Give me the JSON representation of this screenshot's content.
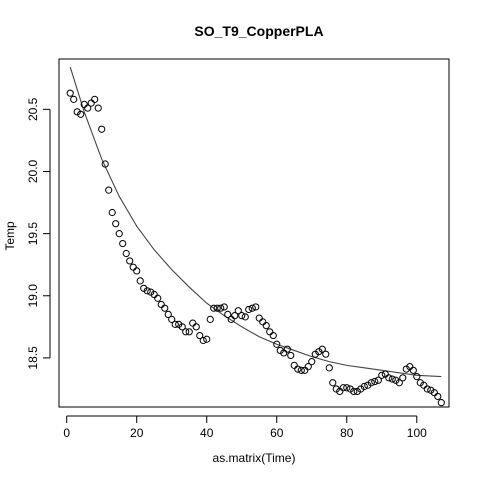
{
  "chart_data": {
    "type": "scatter",
    "title": "SO_T9_CopperPLA",
    "xlabel": "as.matrix(Time)",
    "ylabel": "Temp",
    "xlim": [
      -2.2,
      109.2
    ],
    "ylim": [
      18.105,
      20.905
    ],
    "x_ticks": [
      0,
      20,
      40,
      60,
      80,
      100
    ],
    "y_ticks": [
      18.5,
      19.0,
      19.5,
      20.0,
      20.5
    ],
    "x_tick_labels": [
      "0",
      "20",
      "40",
      "60",
      "80",
      "100"
    ],
    "y_tick_labels": [
      "18.5",
      "19.0",
      "19.5",
      "20.0",
      "20.5"
    ],
    "grid": false,
    "series": [
      {
        "type": "scatter",
        "marker": "open-circle",
        "x": [
          1,
          2,
          3,
          4,
          5,
          6,
          7,
          8,
          9,
          10,
          11,
          12,
          13,
          14,
          15,
          16,
          17,
          18,
          19,
          20,
          21,
          22,
          23,
          24,
          25,
          26,
          27,
          28,
          29,
          30,
          31,
          32,
          33,
          34,
          35,
          36,
          37,
          38,
          39,
          40,
          41,
          42,
          43,
          44,
          45,
          46,
          47,
          48,
          49,
          50,
          51,
          52,
          53,
          54,
          55,
          56,
          57,
          58,
          59,
          60,
          61,
          62,
          63,
          64,
          65,
          66,
          67,
          68,
          69,
          70,
          71,
          72,
          73,
          74,
          75,
          76,
          77,
          78,
          79,
          80,
          81,
          82,
          83,
          84,
          85,
          86,
          87,
          88,
          89,
          90,
          91,
          92,
          93,
          94,
          95,
          96,
          97,
          98,
          99,
          100,
          101,
          102,
          103,
          104,
          105,
          106,
          107
        ],
        "y": [
          20.63,
          20.58,
          20.48,
          20.46,
          20.54,
          20.51,
          20.55,
          20.58,
          20.51,
          20.34,
          20.06,
          19.85,
          19.67,
          19.58,
          19.5,
          19.42,
          19.34,
          19.28,
          19.23,
          19.2,
          19.12,
          19.06,
          19.04,
          19.03,
          19.01,
          18.98,
          18.93,
          18.9,
          18.85,
          18.81,
          18.77,
          18.77,
          18.75,
          18.71,
          18.71,
          18.78,
          18.75,
          18.68,
          18.64,
          18.65,
          18.81,
          18.9,
          18.9,
          18.9,
          18.91,
          18.85,
          18.81,
          18.84,
          18.88,
          18.84,
          18.83,
          18.89,
          18.9,
          18.91,
          18.82,
          18.79,
          18.76,
          18.71,
          18.68,
          18.61,
          18.56,
          18.54,
          18.57,
          18.52,
          18.44,
          18.41,
          18.4,
          18.4,
          18.43,
          18.47,
          18.53,
          18.55,
          18.57,
          18.53,
          18.42,
          18.3,
          18.25,
          18.23,
          18.26,
          18.26,
          18.25,
          18.23,
          18.23,
          18.25,
          18.27,
          18.28,
          18.3,
          18.31,
          18.32,
          18.36,
          18.37,
          18.34,
          18.33,
          18.32,
          18.3,
          18.34,
          18.41,
          18.43,
          18.4,
          18.35,
          18.3,
          18.28,
          18.25,
          18.24,
          18.22,
          18.19,
          18.14
        ]
      },
      {
        "type": "line",
        "name": "",
        "x": [
          1,
          5,
          10,
          15,
          20,
          25,
          30,
          35,
          40,
          45,
          50,
          55,
          60,
          65,
          70,
          75,
          80,
          85,
          90,
          95,
          100,
          107
        ],
        "y": [
          20.84,
          20.48,
          20.1,
          19.8,
          19.56,
          19.37,
          19.21,
          19.07,
          18.94,
          18.84,
          18.75,
          18.67,
          18.61,
          18.56,
          18.51,
          18.47,
          18.44,
          18.42,
          18.4,
          18.38,
          18.36,
          18.35
        ]
      }
    ]
  }
}
